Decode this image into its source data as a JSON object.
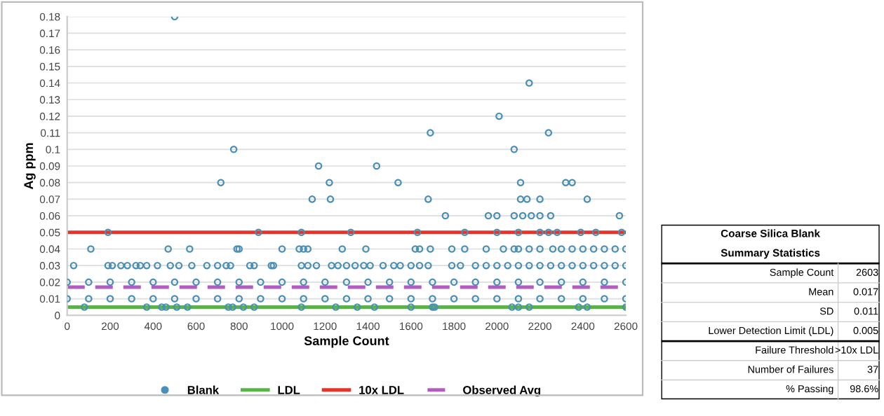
{
  "chart_data": [
    {
      "type": "scatter",
      "xlabel": "Sample Count",
      "ylabel": "Ag ppm",
      "xlim": [
        0,
        2600
      ],
      "xticks": [
        0,
        200,
        400,
        600,
        800,
        1000,
        1200,
        1400,
        1600,
        1800,
        2000,
        2200,
        2400,
        2600
      ],
      "ylim": [
        0,
        0.18
      ],
      "yticks": [
        0,
        0.01,
        0.02,
        0.03,
        0.04,
        0.05,
        0.06,
        0.07,
        0.08,
        0.09,
        0.1,
        0.11,
        0.12,
        0.13,
        0.14,
        0.15,
        0.16,
        0.17,
        0.18
      ],
      "grid": "y",
      "legend": "bottom",
      "series": [
        {
          "name": "Blank",
          "type": "scatter",
          "marker": "circle",
          "color": "#4a8fb5",
          "x": [
            500,
            775,
            715,
            1170,
            1140,
            1220,
            1225,
            1440,
            1540,
            1690,
            1680,
            1760,
            2150,
            2010,
            2240,
            2080,
            2110,
            2320,
            2350,
            2110,
            2140,
            2200,
            2420,
            1960,
            2000,
            2080,
            2120,
            2160,
            2200,
            2250,
            2570,
            190,
            890,
            1090,
            1320,
            1630,
            1850,
            2000,
            2100,
            2200,
            2240,
            2280,
            2390,
            2460,
            2580,
            110,
            470,
            570,
            790,
            800,
            1000,
            1080,
            1100,
            1120,
            1280,
            1390,
            1620,
            1640,
            1690,
            1790,
            1850,
            1950,
            2030,
            2080,
            2100,
            2150,
            2200,
            2260,
            2300,
            2350,
            2400,
            2450,
            2500,
            2550,
            2600,
            30,
            190,
            210,
            250,
            280,
            320,
            340,
            370,
            420,
            480,
            520,
            580,
            650,
            700,
            740,
            760,
            850,
            870,
            950,
            960,
            1090,
            1120,
            1160,
            1230,
            1260,
            1300,
            1340,
            1380,
            1410,
            1470,
            1520,
            1550,
            1600,
            1640,
            1680,
            1790,
            1830,
            1900,
            1950,
            2000,
            2050,
            2100,
            2150,
            2200,
            2250,
            2300,
            2350,
            2400,
            2450,
            2500,
            2550,
            2600,
            0,
            100,
            200,
            300,
            400,
            500,
            600,
            700,
            800,
            900,
            1000,
            1100,
            1200,
            1300,
            1400,
            1500,
            1600,
            1700,
            1800,
            1900,
            2000,
            2100,
            2200,
            2300,
            2400,
            2500,
            2600,
            0,
            100,
            200,
            300,
            400,
            500,
            600,
            700,
            800,
            900,
            1000,
            1100,
            1200,
            1300,
            1400,
            1500,
            1600,
            1700,
            1800,
            1900,
            2000,
            2100,
            2200,
            2300,
            2400,
            2500,
            2600,
            80,
            370,
            440,
            460,
            510,
            560,
            750,
            770,
            820,
            870,
            1090,
            1250,
            1350,
            1430,
            1600,
            1700,
            1710,
            2070,
            2100,
            2150,
            2380,
            2420,
            2600
          ],
          "values": [
            0.18,
            0.1,
            0.08,
            0.09,
            0.07,
            0.08,
            0.07,
            0.09,
            0.08,
            0.11,
            0.07,
            0.06,
            0.14,
            0.12,
            0.11,
            0.1,
            0.08,
            0.08,
            0.08,
            0.07,
            0.07,
            0.07,
            0.07,
            0.06,
            0.06,
            0.06,
            0.06,
            0.06,
            0.06,
            0.06,
            0.06,
            0.05,
            0.05,
            0.05,
            0.05,
            0.05,
            0.05,
            0.05,
            0.05,
            0.05,
            0.05,
            0.05,
            0.05,
            0.05,
            0.05,
            0.04,
            0.04,
            0.04,
            0.04,
            0.04,
            0.04,
            0.04,
            0.04,
            0.04,
            0.04,
            0.04,
            0.04,
            0.04,
            0.04,
            0.04,
            0.04,
            0.04,
            0.04,
            0.04,
            0.04,
            0.04,
            0.04,
            0.04,
            0.04,
            0.04,
            0.04,
            0.04,
            0.04,
            0.04,
            0.04,
            0.03,
            0.03,
            0.03,
            0.03,
            0.03,
            0.03,
            0.03,
            0.03,
            0.03,
            0.03,
            0.03,
            0.03,
            0.03,
            0.03,
            0.03,
            0.03,
            0.03,
            0.03,
            0.03,
            0.03,
            0.03,
            0.03,
            0.03,
            0.03,
            0.03,
            0.03,
            0.03,
            0.03,
            0.03,
            0.03,
            0.03,
            0.03,
            0.03,
            0.03,
            0.03,
            0.03,
            0.03,
            0.03,
            0.03,
            0.03,
            0.03,
            0.03,
            0.03,
            0.03,
            0.03,
            0.03,
            0.03,
            0.03,
            0.03,
            0.03,
            0.03,
            0.03,
            0.02,
            0.02,
            0.02,
            0.02,
            0.02,
            0.02,
            0.02,
            0.02,
            0.02,
            0.02,
            0.02,
            0.02,
            0.02,
            0.02,
            0.02,
            0.02,
            0.02,
            0.02,
            0.02,
            0.02,
            0.02,
            0.02,
            0.02,
            0.02,
            0.02,
            0.02,
            0.02,
            0.01,
            0.01,
            0.01,
            0.01,
            0.01,
            0.01,
            0.01,
            0.01,
            0.01,
            0.01,
            0.01,
            0.01,
            0.01,
            0.01,
            0.01,
            0.01,
            0.01,
            0.01,
            0.01,
            0.01,
            0.01,
            0.01,
            0.01,
            0.01,
            0.01,
            0.01,
            0.01,
            0.005,
            0.005,
            0.005,
            0.005,
            0.005,
            0.005,
            0.005,
            0.005,
            0.005,
            0.005,
            0.005,
            0.005,
            0.005,
            0.005,
            0.005,
            0.005,
            0.005,
            0.005,
            0.005,
            0.005,
            0.005,
            0.005,
            0.005
          ]
        },
        {
          "name": "LDL",
          "type": "line",
          "color": "#5bb14a",
          "line_style": "solid",
          "x": [
            0,
            2600
          ],
          "values": [
            0.005,
            0.005
          ]
        },
        {
          "name": "10x LDL",
          "type": "line",
          "color": "#e8332b",
          "line_style": "solid",
          "x": [
            0,
            2600
          ],
          "values": [
            0.05,
            0.05
          ]
        },
        {
          "name": "Observed Avg",
          "type": "line",
          "color": "#b05cc0",
          "line_style": "dashed",
          "x": [
            0,
            2600
          ],
          "values": [
            0.017,
            0.017
          ]
        }
      ]
    },
    {
      "type": "other",
      "title": "Coarse Silica Blank",
      "subtitle": "Summary Statistics",
      "categories": [
        "Sample Count",
        "Mean",
        "SD",
        "Lower Detection Limit (LDL)",
        "Failure Threshold",
        "Number of Failures",
        "% Passing"
      ],
      "value_labels": [
        "2603",
        "0.017",
        "0.011",
        "0.005",
        ">10x LDL",
        "37",
        "98.6%"
      ]
    }
  ]
}
